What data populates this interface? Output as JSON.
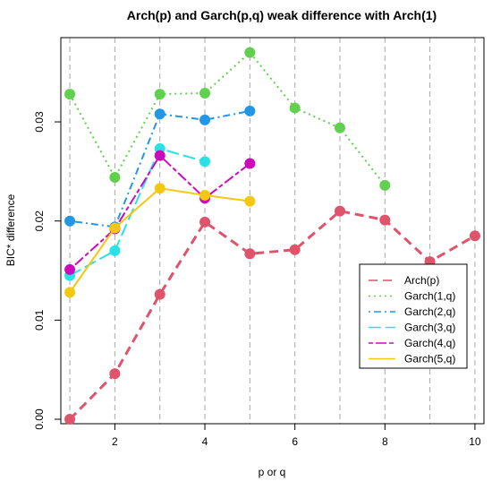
{
  "chart_data": {
    "type": "line",
    "title": "Arch(p) and Garch(p,q) weak difference with Arch(1)",
    "xlabel": "p or q",
    "ylabel": "BIC* difference",
    "xlim": [
      0.8,
      10.2
    ],
    "ylim": [
      -0.00045,
      0.0385
    ],
    "xticks": [
      2,
      4,
      6,
      8,
      10
    ],
    "yticks": [
      0.0,
      0.01,
      0.02,
      0.03
    ],
    "ytick_labels": [
      "0.00",
      "0.01",
      "0.02",
      "0.03"
    ],
    "grid": "vertical dashed lines at x = 1..10",
    "legend_position": "bottom-right",
    "series": [
      {
        "name": "Arch(p)",
        "color": "#DF536B",
        "dash": "dashed",
        "x": [
          1,
          2,
          3,
          4,
          5,
          6,
          7,
          8,
          9,
          10
        ],
        "y": [
          0.0,
          0.0046,
          0.0126,
          0.0199,
          0.0167,
          0.0171,
          0.021,
          0.0201,
          0.0159,
          0.0185
        ]
      },
      {
        "name": "Garch(1,q)",
        "color": "#61D04F",
        "dash": "dotted",
        "x": [
          1,
          2,
          3,
          4,
          5,
          6,
          7,
          8
        ],
        "y": [
          0.0328,
          0.0244,
          0.0328,
          0.0329,
          0.037,
          0.0314,
          0.0294,
          0.0236
        ]
      },
      {
        "name": "Garch(2,q)",
        "color": "#2297E6",
        "dash": "dotdash",
        "x": [
          1,
          2,
          3,
          4,
          5
        ],
        "y": [
          0.02,
          0.0194,
          0.0308,
          0.0302,
          0.0311
        ]
      },
      {
        "name": "Garch(3,q)",
        "color": "#28E2E5",
        "dash": "longdash",
        "x": [
          1,
          2,
          3,
          4
        ],
        "y": [
          0.0145,
          0.017,
          0.0273,
          0.026
        ]
      },
      {
        "name": "Garch(4,q)",
        "color": "#CD0BBC",
        "dash": "twodash",
        "x": [
          1,
          2,
          3,
          4,
          5
        ],
        "y": [
          0.0151,
          0.0192,
          0.0266,
          0.0223,
          0.0258
        ]
      },
      {
        "name": "Garch(5,q)",
        "color": "#F5C710",
        "dash": "solid",
        "x": [
          1,
          2,
          3,
          4,
          5
        ],
        "y": [
          0.0128,
          0.0193,
          0.0233,
          0.0226,
          0.022
        ]
      }
    ]
  }
}
